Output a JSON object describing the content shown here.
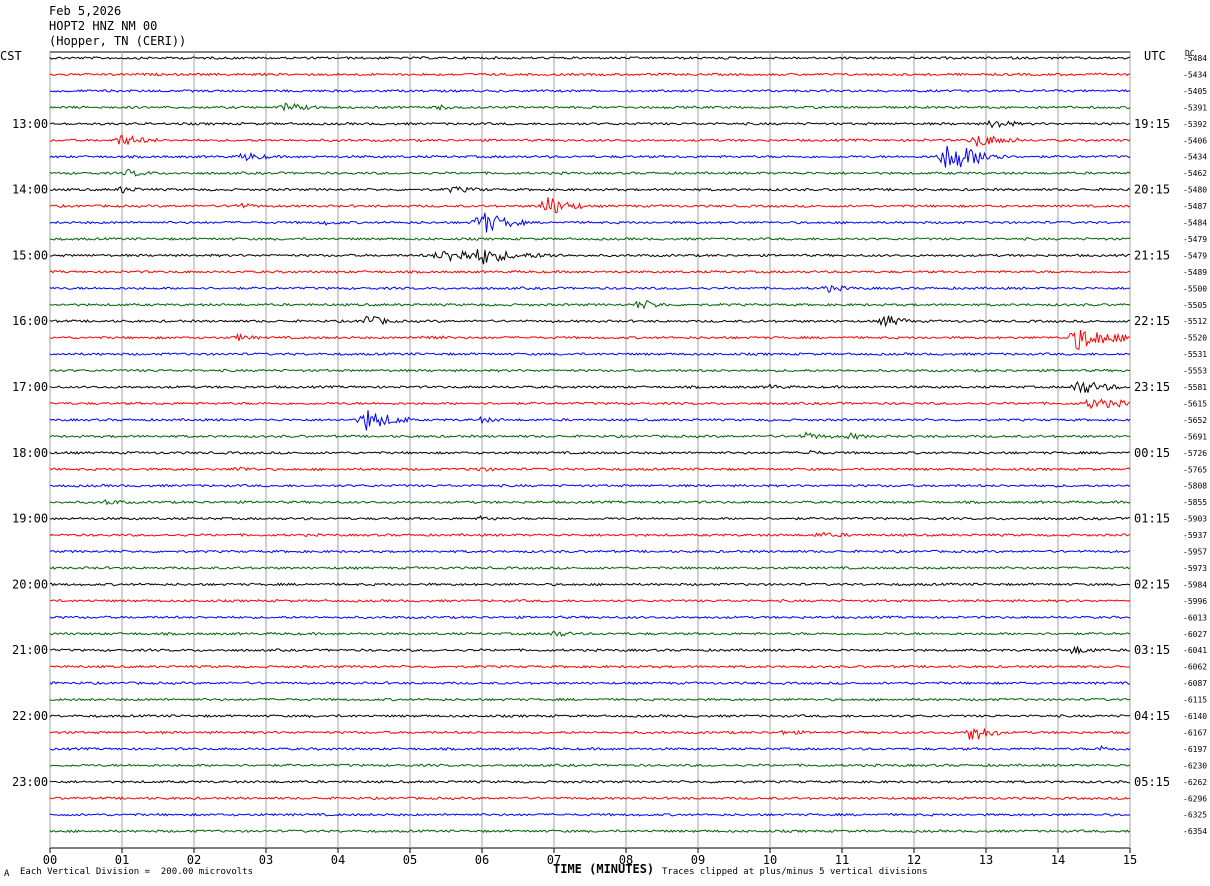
{
  "header": {
    "date": "Feb 5,2026",
    "station": "HOPT2 HNZ NM 00",
    "location": "(Hopper, TN (CERI))"
  },
  "left_zone_label": "CST",
  "right_zone_label": "UTC",
  "dc_label": "DC",
  "footer": {
    "scale_note": "Each Vertical Division =  200.00 microvolts",
    "clip_note": "Traces clipped at plus/minus 5 vertical divisions",
    "corner_mark": "A"
  },
  "colors": {
    "trace_cycle": [
      "#000000",
      "#ff0000",
      "#0000ff",
      "#006400"
    ],
    "gridline": "#a0a0a0"
  },
  "chart_data": {
    "type": "line",
    "title": "",
    "xlabel": "TIME (MINUTES)",
    "ylabel": "",
    "xlim": [
      0,
      15
    ],
    "x_ticks": [
      "00",
      "01",
      "02",
      "03",
      "04",
      "05",
      "06",
      "07",
      "08",
      "09",
      "10",
      "11",
      "12",
      "13",
      "14",
      "15"
    ],
    "grid": true,
    "rows": 48,
    "left_hour_labels": [
      {
        "row": 4,
        "label": "13:00"
      },
      {
        "row": 8,
        "label": "14:00"
      },
      {
        "row": 12,
        "label": "15:00"
      },
      {
        "row": 16,
        "label": "16:00"
      },
      {
        "row": 20,
        "label": "17:00"
      },
      {
        "row": 24,
        "label": "18:00"
      },
      {
        "row": 28,
        "label": "19:00"
      },
      {
        "row": 32,
        "label": "20:00"
      },
      {
        "row": 36,
        "label": "21:00"
      },
      {
        "row": 40,
        "label": "22:00"
      },
      {
        "row": 44,
        "label": "23:00"
      }
    ],
    "right_hour_labels": [
      {
        "row": 4,
        "label": "19:15"
      },
      {
        "row": 8,
        "label": "20:15"
      },
      {
        "row": 12,
        "label": "21:15"
      },
      {
        "row": 16,
        "label": "22:15"
      },
      {
        "row": 20,
        "label": "23:15"
      },
      {
        "row": 24,
        "label": "00:15"
      },
      {
        "row": 28,
        "label": "01:15"
      },
      {
        "row": 32,
        "label": "02:15"
      },
      {
        "row": 36,
        "label": "03:15"
      },
      {
        "row": 40,
        "label": "04:15"
      },
      {
        "row": 44,
        "label": "05:15"
      }
    ],
    "dc_offsets": [
      "-5484",
      "-5434",
      "-5405",
      "-5391",
      "-5392",
      "-5406",
      "-5434",
      "-5462",
      "-5480",
      "-5487",
      "-5484",
      "-5479",
      "-5479",
      "-5489",
      "-5500",
      "-5505",
      "-5512",
      "-5520",
      "-5531",
      "-5553",
      "-5581",
      "-5615",
      "-5652",
      "-5691",
      "-5726",
      "-5765",
      "-5808",
      "-5855",
      "-5903",
      "-5937",
      "-5957",
      "-5973",
      "-5984",
      "-5996",
      "-6013",
      "-6027",
      "-6041",
      "-6062",
      "-6087",
      "-6115",
      "-6140",
      "-6167",
      "-6197",
      "-6230",
      "-6262",
      "-6296",
      "-6325",
      "-6354"
    ],
    "events": [
      {
        "row": 3,
        "minute": 3.3,
        "amp": 0.6,
        "dur": 0.5
      },
      {
        "row": 3,
        "minute": 5.4,
        "amp": 0.3,
        "dur": 0.3
      },
      {
        "row": 4,
        "minute": 13.1,
        "amp": 0.8,
        "dur": 0.4
      },
      {
        "row": 5,
        "minute": 1.0,
        "amp": 0.9,
        "dur": 0.5
      },
      {
        "row": 5,
        "minute": 12.9,
        "amp": 1.0,
        "dur": 0.6
      },
      {
        "row": 6,
        "minute": 2.7,
        "amp": 0.7,
        "dur": 0.4
      },
      {
        "row": 6,
        "minute": 12.5,
        "amp": 2.5,
        "dur": 0.8
      },
      {
        "row": 7,
        "minute": 1.1,
        "amp": 0.5,
        "dur": 0.4
      },
      {
        "row": 8,
        "minute": 1.0,
        "amp": 0.5,
        "dur": 0.3
      },
      {
        "row": 8,
        "minute": 5.6,
        "amp": 0.4,
        "dur": 0.5
      },
      {
        "row": 9,
        "minute": 2.6,
        "amp": 0.5,
        "dur": 0.3
      },
      {
        "row": 9,
        "minute": 6.9,
        "amp": 1.8,
        "dur": 0.5
      },
      {
        "row": 10,
        "minute": 6.0,
        "amp": 1.9,
        "dur": 0.6
      },
      {
        "row": 10,
        "minute": 3.8,
        "amp": 0.3,
        "dur": 0.3
      },
      {
        "row": 12,
        "minute": 5.6,
        "amp": 0.9,
        "dur": 1.6
      },
      {
        "row": 12,
        "minute": 6.0,
        "amp": 1.0,
        "dur": 0.4
      },
      {
        "row": 14,
        "minute": 10.8,
        "amp": 0.5,
        "dur": 0.4
      },
      {
        "row": 15,
        "minute": 8.2,
        "amp": 0.8,
        "dur": 0.4
      },
      {
        "row": 16,
        "minute": 4.4,
        "amp": 1.0,
        "dur": 0.4
      },
      {
        "row": 16,
        "minute": 11.6,
        "amp": 1.0,
        "dur": 0.4
      },
      {
        "row": 17,
        "minute": 2.6,
        "amp": 0.5,
        "dur": 0.3
      },
      {
        "row": 17,
        "minute": 5.2,
        "amp": 0.5,
        "dur": 0.3
      },
      {
        "row": 17,
        "minute": 14.3,
        "amp": 1.9,
        "dur": 0.8
      },
      {
        "row": 20,
        "minute": 10.0,
        "amp": 0.3,
        "dur": 0.3
      },
      {
        "row": 20,
        "minute": 14.3,
        "amp": 1.2,
        "dur": 0.6
      },
      {
        "row": 21,
        "minute": 14.5,
        "amp": 0.8,
        "dur": 0.8
      },
      {
        "row": 22,
        "minute": 4.4,
        "amp": 1.8,
        "dur": 0.6
      },
      {
        "row": 22,
        "minute": 6.0,
        "amp": 0.4,
        "dur": 0.3
      },
      {
        "row": 23,
        "minute": 10.5,
        "amp": 0.5,
        "dur": 0.4
      },
      {
        "row": 23,
        "minute": 11.1,
        "amp": 0.5,
        "dur": 0.3
      },
      {
        "row": 24,
        "minute": 10.5,
        "amp": 0.4,
        "dur": 0.3
      },
      {
        "row": 25,
        "minute": 2.6,
        "amp": 0.4,
        "dur": 0.3
      },
      {
        "row": 25,
        "minute": 5.9,
        "amp": 0.3,
        "dur": 0.4
      },
      {
        "row": 27,
        "minute": 0.8,
        "amp": 0.4,
        "dur": 0.3
      },
      {
        "row": 28,
        "minute": 6.0,
        "amp": 0.3,
        "dur": 0.3
      },
      {
        "row": 29,
        "minute": 10.7,
        "amp": 0.3,
        "dur": 0.5
      },
      {
        "row": 35,
        "minute": 7.0,
        "amp": 0.5,
        "dur": 0.3
      },
      {
        "row": 36,
        "minute": 14.2,
        "amp": 0.7,
        "dur": 0.4
      },
      {
        "row": 41,
        "minute": 12.8,
        "amp": 1.6,
        "dur": 0.4
      },
      {
        "row": 41,
        "minute": 10.2,
        "amp": 0.3,
        "dur": 0.3
      },
      {
        "row": 42,
        "minute": 14.6,
        "amp": 0.4,
        "dur": 0.3
      }
    ]
  }
}
